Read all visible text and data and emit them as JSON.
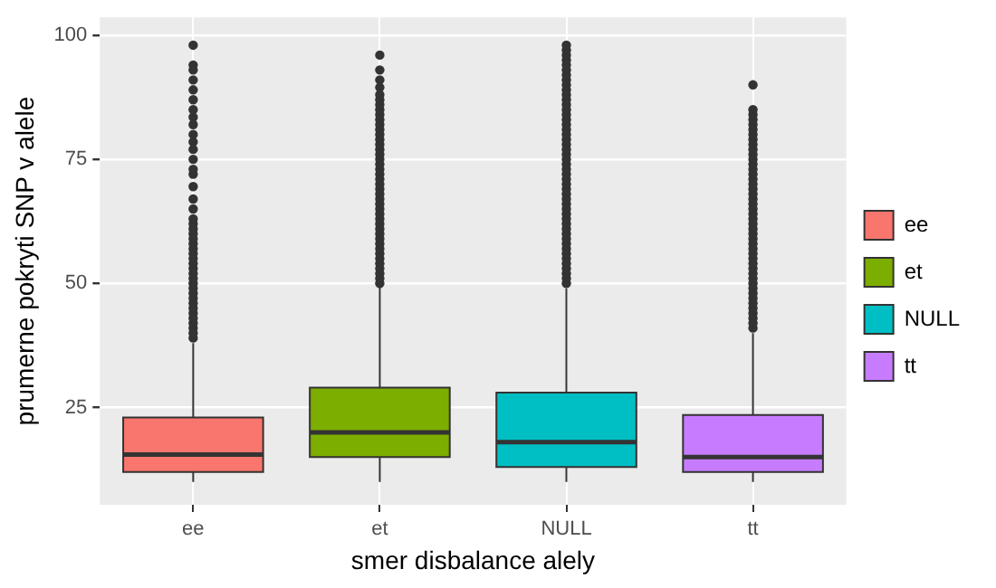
{
  "chart_data": {
    "type": "box",
    "xlabel": "smer disbalance alely",
    "ylabel": "prumerne pokryti SNP v alele",
    "categories": [
      "ee",
      "et",
      "NULL",
      "tt"
    ],
    "series": [
      {
        "name": "ee",
        "color": "#f8766d",
        "boxes": [
          {
            "low": 10,
            "q1": 12,
            "median": 15.5,
            "q3": 23,
            "high": 38,
            "outliers": [
              39,
              40,
              41,
              42,
              43,
              44,
              45,
              46,
              47,
              48,
              49,
              50,
              51,
              52,
              53,
              54,
              55,
              56,
              57,
              58,
              59,
              60,
              61,
              62,
              63,
              65,
              67,
              69.5,
              72,
              73,
              75,
              77,
              78.5,
              80,
              82,
              83.5,
              85,
              87,
              89,
              91,
              93,
              94,
              98
            ]
          },
          null,
          null,
          null
        ]
      },
      {
        "name": "et",
        "color": "#7cae00",
        "boxes": [
          null,
          {
            "low": 10,
            "q1": 15,
            "median": 20,
            "q3": 29,
            "high": 49.5,
            "outliers": [
              50,
              51,
              52,
              53,
              54,
              55,
              56,
              57,
              58,
              59,
              60,
              61,
              62,
              63,
              64,
              65,
              66,
              67,
              68,
              69,
              70,
              71,
              72,
              73,
              74,
              75,
              76,
              77,
              78,
              79,
              80,
              81,
              82,
              83,
              84,
              85,
              86,
              87,
              88,
              89.5,
              91,
              93,
              96
            ]
          },
          null,
          null
        ]
      },
      {
        "name": "NULL",
        "color": "#00bfc4",
        "boxes": [
          null,
          null,
          {
            "low": 10,
            "q1": 13,
            "median": 18,
            "q3": 28,
            "high": 49,
            "outliers": [
              50,
              51,
              52,
              53,
              54,
              55,
              56,
              57,
              58,
              59,
              60,
              61,
              62,
              63,
              64,
              65,
              66,
              67,
              68,
              69,
              70,
              71,
              72,
              73,
              74,
              75,
              76,
              77,
              78,
              79,
              80,
              81,
              82,
              83,
              84,
              85,
              86,
              87,
              88,
              89,
              90,
              91,
              92,
              93,
              94,
              95,
              96,
              97,
              98
            ]
          },
          null
        ]
      },
      {
        "name": "tt",
        "color": "#c77cff",
        "boxes": [
          null,
          null,
          null,
          {
            "low": 10,
            "q1": 12,
            "median": 15,
            "q3": 23.5,
            "high": 40,
            "outliers": [
              41,
              42,
              43,
              44,
              45,
              46,
              47,
              48,
              49,
              50,
              51,
              52,
              53,
              54,
              55,
              56,
              57,
              58,
              59,
              60,
              61,
              62,
              63,
              64,
              65,
              66,
              67,
              68,
              69,
              70,
              71,
              72,
              73,
              74,
              75,
              76,
              77,
              78,
              79,
              80,
              81,
              82,
              83,
              84,
              85,
              90
            ]
          }
        ]
      }
    ],
    "ylim": [
      5.4,
      103.6
    ],
    "yticks": [
      25,
      50,
      75,
      100
    ],
    "grid": true,
    "legend": "right"
  }
}
